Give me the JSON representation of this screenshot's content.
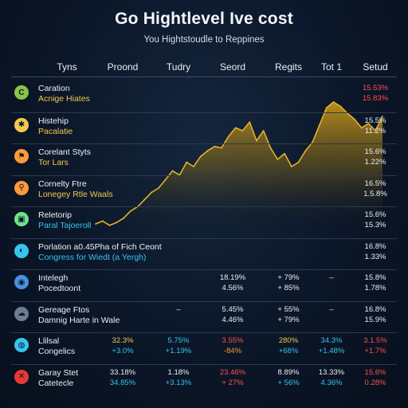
{
  "title": "Go Hightlevel Ive cost",
  "subtitle": "You Hightstoudle to Reppines",
  "columns": [
    "Tyns",
    "Proond",
    "Tudry",
    "Seord",
    "Regits",
    "Tot 1",
    "Setud"
  ],
  "colors": {
    "area_top": "#d9a21b",
    "area_line": "#e3b227",
    "red": "#ff4d4d",
    "yellow": "#f2c94c",
    "cyan": "#35c5ee",
    "orange": "#ff9a3a",
    "green": "#6fe28a"
  },
  "rows": [
    {
      "icon": "circle-c-icon",
      "icon_color": "#8bc34a",
      "icon_glyph": "C",
      "name": "Caration",
      "sub": "Acnige Hiates",
      "sub_color": "#f2c94c",
      "cells": [
        {
          "col": 6,
          "line": 0,
          "text": "15.53%",
          "color": "#ff4d4d"
        },
        {
          "col": 6,
          "line": 1,
          "text": "15.83%",
          "color": "#ff4d4d"
        }
      ]
    },
    {
      "icon": "gear-icon",
      "icon_color": "#f2c94c",
      "icon_glyph": "✱",
      "name": "Histehip",
      "sub": "Pacalatie",
      "sub_color": "#f2c94c",
      "cells": [
        {
          "col": 6,
          "line": 0,
          "text": "15.5%",
          "color": "#e8edf4"
        },
        {
          "col": 6,
          "line": 1,
          "text": "11.2%",
          "color": "#e8edf4"
        }
      ]
    },
    {
      "icon": "flag-icon",
      "icon_color": "#ff9a3a",
      "icon_glyph": "⚑",
      "name": "Corelant Styts",
      "sub": "Tor Lars",
      "sub_color": "#f2c94c",
      "cells": [
        {
          "col": 6,
          "line": 0,
          "text": "15.6%",
          "color": "#e8edf4"
        },
        {
          "col": 6,
          "line": 1,
          "text": "1.22%",
          "color": "#e8edf4"
        }
      ]
    },
    {
      "icon": "search-icon",
      "icon_color": "#ff9a3a",
      "icon_glyph": "⚲",
      "name": "Cornelty Ftre",
      "sub": "Lonegey Rtle Waals",
      "sub_color": "#f2c94c",
      "cells": [
        {
          "col": 6,
          "line": 0,
          "text": "16.5%",
          "color": "#e8edf4"
        },
        {
          "col": 6,
          "line": 1,
          "text": "1.5.8%",
          "color": "#e8edf4"
        }
      ]
    },
    {
      "icon": "chart-icon",
      "icon_color": "#6fe28a",
      "icon_glyph": "▣",
      "name": "Reletorip",
      "sub": "Paral Tajoeroll",
      "sub_color": "#35c5ee",
      "cells": [
        {
          "col": 6,
          "line": 0,
          "text": "15.6%",
          "color": "#e8edf4"
        },
        {
          "col": 6,
          "line": 1,
          "text": "15.3%",
          "color": "#e8edf4"
        }
      ]
    },
    {
      "icon": "leaf-icon",
      "icon_color": "#35c5ee",
      "icon_glyph": "◐",
      "name": "Porlation a0.45Pha of Fich Ceont",
      "sub": "Congress for Wiedt (a Yergh)",
      "sub_color": "#35c5ee",
      "cells": [
        {
          "col": 6,
          "line": 0,
          "text": "16.8%",
          "color": "#e8edf4"
        },
        {
          "col": 6,
          "line": 1,
          "text": "1.33%",
          "color": "#e8edf4"
        }
      ]
    },
    {
      "icon": "person-icon",
      "icon_color": "#4a90e2",
      "icon_glyph": "◉",
      "name": "Intelegh",
      "sub": "Pocedtoont",
      "sub_color": "#e8edf4",
      "cells": [
        {
          "col": 3,
          "line": 0,
          "text": "18.19%",
          "color": "#e8edf4"
        },
        {
          "col": 3,
          "line": 1,
          "text": "4.56%",
          "color": "#e8edf4"
        },
        {
          "col": 4,
          "line": 0,
          "text": "+ 79%",
          "color": "#e8edf4"
        },
        {
          "col": 4,
          "line": 1,
          "text": "+ 85%",
          "color": "#e8edf4"
        },
        {
          "col": 5,
          "line": 0,
          "text": "–",
          "color": "#e8edf4"
        },
        {
          "col": 6,
          "line": 0,
          "text": "15.8%",
          "color": "#e8edf4"
        },
        {
          "col": 6,
          "line": 1,
          "text": "1.78%",
          "color": "#e8edf4"
        }
      ]
    },
    {
      "icon": "cloud-icon",
      "icon_color": "#6b7c93",
      "icon_glyph": "☁",
      "name": "Gereage Ftos",
      "sub": "Damnig Harte in Wale",
      "sub_color": "#e8edf4",
      "cells": [
        {
          "col": 2,
          "line": 0,
          "text": "–",
          "color": "#e8edf4"
        },
        {
          "col": 3,
          "line": 0,
          "text": "5.45%",
          "color": "#e8edf4"
        },
        {
          "col": 3,
          "line": 1,
          "text": "4.46%",
          "color": "#e8edf4"
        },
        {
          "col": 4,
          "line": 0,
          "text": "+ 55%",
          "color": "#e8edf4"
        },
        {
          "col": 4,
          "line": 1,
          "text": "+ 79%",
          "color": "#e8edf4"
        },
        {
          "col": 5,
          "line": 0,
          "text": "–",
          "color": "#e8edf4"
        },
        {
          "col": 6,
          "line": 0,
          "text": "16.8%",
          "color": "#e8edf4"
        },
        {
          "col": 6,
          "line": 1,
          "text": "15.9%",
          "color": "#e8edf4"
        }
      ]
    },
    {
      "icon": "globe-icon",
      "icon_color": "#35c5ee",
      "icon_glyph": "◍",
      "name": "Llilsal",
      "sub": "Congelics",
      "sub_color": "#e8edf4",
      "cells": [
        {
          "col": 1,
          "line": 0,
          "text": "32.3%",
          "color": "#f2c94c"
        },
        {
          "col": 1,
          "line": 1,
          "text": "+3.0%",
          "color": "#35c5ee"
        },
        {
          "col": 2,
          "line": 0,
          "text": "5.75%",
          "color": "#35c5ee"
        },
        {
          "col": 2,
          "line": 1,
          "text": "+1.19%",
          "color": "#35c5ee"
        },
        {
          "col": 3,
          "line": 0,
          "text": "3.55%",
          "color": "#ff4d4d"
        },
        {
          "col": 3,
          "line": 1,
          "text": "-84%",
          "color": "#ff9a3a"
        },
        {
          "col": 4,
          "line": 0,
          "text": "280%",
          "color": "#f2c94c"
        },
        {
          "col": 4,
          "line": 1,
          "text": "+68%",
          "color": "#35c5ee"
        },
        {
          "col": 5,
          "line": 0,
          "text": "34.3%",
          "color": "#35c5ee"
        },
        {
          "col": 5,
          "line": 1,
          "text": "+1.48%",
          "color": "#35c5ee"
        },
        {
          "col": 6,
          "line": 0,
          "text": "3.1.5%",
          "color": "#ff4d4d"
        },
        {
          "col": 6,
          "line": 1,
          "text": "+1.7%",
          "color": "#ff4d4d"
        }
      ]
    },
    {
      "icon": "x-icon",
      "icon_color": "#e53935",
      "icon_glyph": "✕",
      "name": "Garay Stet",
      "sub": "Catetecle",
      "sub_color": "#e8edf4",
      "cells": [
        {
          "col": 1,
          "line": 0,
          "text": "33.18%",
          "color": "#e8edf4"
        },
        {
          "col": 1,
          "line": 1,
          "text": "34.85%",
          "color": "#35c5ee"
        },
        {
          "col": 2,
          "line": 0,
          "text": "1.18%",
          "color": "#e8edf4"
        },
        {
          "col": 2,
          "line": 1,
          "text": "+3.13%",
          "color": "#35c5ee"
        },
        {
          "col": 3,
          "line": 0,
          "text": "23.46%",
          "color": "#ff4d4d"
        },
        {
          "col": 3,
          "line": 1,
          "text": "+ 27%",
          "color": "#ff4d4d"
        },
        {
          "col": 4,
          "line": 0,
          "text": "8.89%",
          "color": "#e8edf4"
        },
        {
          "col": 4,
          "line": 1,
          "text": "+ 56%",
          "color": "#35c5ee"
        },
        {
          "col": 5,
          "line": 0,
          "text": "13.33%",
          "color": "#e8edf4"
        },
        {
          "col": 5,
          "line": 1,
          "text": "4.36%",
          "color": "#35c5ee"
        },
        {
          "col": 6,
          "line": 0,
          "text": "15.6%",
          "color": "#ff4d4d"
        },
        {
          "col": 6,
          "line": 1,
          "text": "0.28%",
          "color": "#ff4d4d"
        }
      ]
    }
  ],
  "chart_data": {
    "type": "area",
    "title": "Go Hightlevel Ive cost",
    "subtitle": "You Hightstoudle to Reppines",
    "x": [
      1,
      2,
      3,
      4,
      5,
      6,
      7,
      8,
      9,
      10,
      11,
      12,
      13,
      14,
      15,
      16,
      17,
      18,
      19,
      20,
      21,
      22,
      23,
      24,
      25,
      26,
      27,
      28,
      29,
      30,
      31,
      32,
      33,
      34,
      35,
      36,
      37,
      38,
      39,
      40,
      41,
      42
    ],
    "values": [
      5,
      7,
      4,
      6,
      9,
      14,
      17,
      22,
      27,
      30,
      36,
      42,
      39,
      48,
      45,
      52,
      56,
      59,
      58,
      66,
      72,
      70,
      76,
      63,
      70,
      58,
      50,
      54,
      45,
      48,
      56,
      62,
      74,
      86,
      90,
      87,
      82,
      78,
      72,
      75,
      70,
      80
    ],
    "ylim": [
      0,
      100
    ],
    "grid": false,
    "legend": "none"
  }
}
